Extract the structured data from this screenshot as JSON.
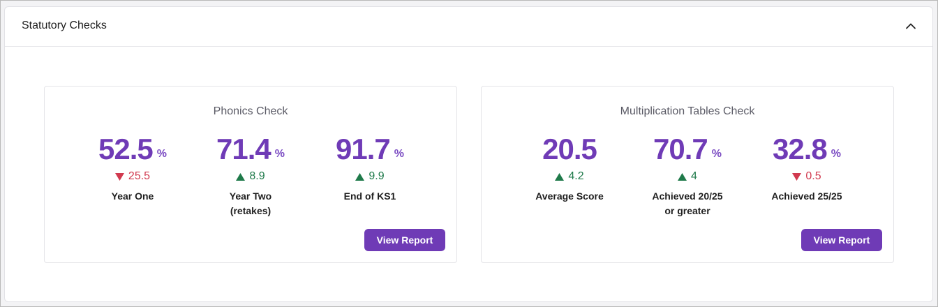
{
  "panel": {
    "title": "Statutory Checks"
  },
  "colors": {
    "accent": "#6f3bb6",
    "up": "#1f7a4a",
    "down": "#d13a4f"
  },
  "cards": [
    {
      "title": "Phonics Check",
      "button_label": "View Report",
      "metrics": [
        {
          "value": "52.5",
          "unit": "%",
          "change": "25.5",
          "direction": "down",
          "label": "Year One"
        },
        {
          "value": "71.4",
          "unit": "%",
          "change": "8.9",
          "direction": "up",
          "label": "Year Two\n(retakes)"
        },
        {
          "value": "91.7",
          "unit": "%",
          "change": "9.9",
          "direction": "up",
          "label": "End of KS1"
        }
      ]
    },
    {
      "title": "Multiplication Tables Check",
      "button_label": "View Report",
      "metrics": [
        {
          "value": "20.5",
          "unit": "",
          "change": "4.2",
          "direction": "up",
          "label": "Average Score"
        },
        {
          "value": "70.7",
          "unit": "%",
          "change": "4",
          "direction": "up",
          "label": "Achieved 20/25\nor greater"
        },
        {
          "value": "32.8",
          "unit": "%",
          "change": "0.5",
          "direction": "down",
          "label": "Achieved 25/25"
        }
      ]
    }
  ],
  "icons": {
    "collapse": "chevron-up-icon",
    "increase": "triangle-up-icon",
    "decrease": "triangle-down-icon"
  }
}
